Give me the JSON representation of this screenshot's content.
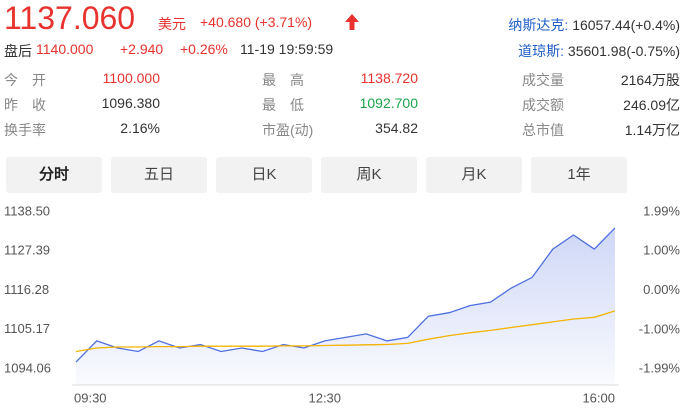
{
  "quote": {
    "price": "1137.060",
    "currency": "美元",
    "change": "+40.680 (+3.71%)",
    "after_hours": {
      "label": "盘后",
      "price": "1140.000",
      "change": "+2.940",
      "percent": "+0.26%",
      "time": "11-19 19:59:59"
    }
  },
  "indices": [
    {
      "name": "纳斯达克:",
      "value": "16057.44(+0.4%)"
    },
    {
      "name": "道琼斯:",
      "value": "35601.98(-0.75%)"
    }
  ],
  "stats": [
    [
      {
        "label": "今　开",
        "value": "1100.000"
      },
      {
        "label": "最　高",
        "value": "1138.720"
      },
      {
        "label": "成交量",
        "value": "2164万股"
      }
    ],
    [
      {
        "label": "昨　收",
        "value": "1096.380"
      },
      {
        "label": "最　低",
        "value": "1092.700"
      },
      {
        "label": "成交额",
        "value": "246.09亿"
      }
    ],
    [
      {
        "label": "换手率",
        "value": "2.16%"
      },
      {
        "label": "市盈(动)",
        "value": "354.82"
      },
      {
        "label": "总市值",
        "value": "1.14万亿"
      }
    ]
  ],
  "tabs": [
    "分时",
    "五日",
    "日K",
    "周K",
    "月K",
    "1年"
  ],
  "chart_data": {
    "type": "line",
    "x": [
      "09:30",
      "09:45",
      "10:00",
      "10:15",
      "10:30",
      "10:45",
      "11:00",
      "11:15",
      "11:30",
      "11:45",
      "12:00",
      "12:15",
      "12:30",
      "12:45",
      "13:00",
      "13:15",
      "13:30",
      "13:45",
      "14:00",
      "14:15",
      "14:30",
      "14:45",
      "15:00",
      "15:15",
      "15:30",
      "15:45",
      "16:00"
    ],
    "xticks": [
      "09:30",
      "12:30",
      "16:00"
    ],
    "series": [
      {
        "color": "#4f6fe0",
        "values": [
          1096,
          1102,
          1100,
          1099,
          1102,
          1100,
          1101,
          1099,
          1100,
          1099,
          1101,
          1100,
          1102,
          1103,
          1104,
          1102,
          1103,
          1109,
          1110,
          1112,
          1113,
          1117,
          1120,
          1128,
          1132,
          1128,
          1134
        ]
      },
      {
        "color": "#f5b400",
        "values": [
          1099,
          1100,
          1100.3,
          1100.3,
          1100.4,
          1100.4,
          1100.5,
          1100.5,
          1100.5,
          1100.5,
          1100.6,
          1100.6,
          1100.7,
          1100.8,
          1100.9,
          1101,
          1101.3,
          1102.5,
          1103.5,
          1104.3,
          1105,
          1105.8,
          1106.6,
          1107.4,
          1108.2,
          1108.7,
          1110.5
        ]
      }
    ],
    "ylim": [
      1094.06,
      1138.5
    ],
    "yticks": [
      {
        "value": 1138.5,
        "label": "1138.50"
      },
      1127.39,
      1116.28,
      1105.17,
      1094.06
    ],
    "y2lim": [
      -1.99,
      1.99
    ],
    "y2ticks": [
      {
        "value": 1.99,
        "label": "1.99%"
      },
      {
        "value": 1,
        "label": "1.00%"
      },
      {
        "value": 0,
        "label": "0.00%"
      },
      {
        "value": -1,
        "label": "-1.00%"
      },
      {
        "value": -1.99,
        "label": "-1.99%"
      }
    ],
    "grid": false
  }
}
